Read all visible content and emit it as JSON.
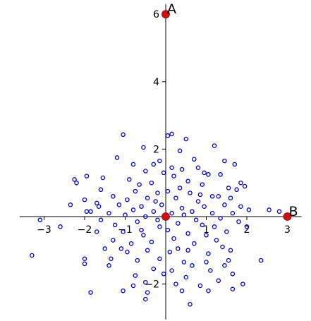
{
  "chart_data": {
    "type": "scatter",
    "title": "",
    "xlabel": "",
    "ylabel": "",
    "xlim": [
      -3.6,
      3.35
    ],
    "ylim": [
      -3.05,
      6.3
    ],
    "grid": false,
    "legend": "none",
    "x_ticks": [
      -3,
      -2,
      -1,
      0,
      1,
      2,
      3
    ],
    "y_ticks": [
      -2,
      0,
      2,
      4,
      6
    ],
    "x_tick_labels": [
      "−3",
      "−2",
      "−1",
      "",
      "1",
      "2",
      "3"
    ],
    "y_tick_labels": [
      "−2",
      "",
      "2",
      "4",
      "6"
    ],
    "point_color": "#0000cc",
    "highlight_color": "#cc1111",
    "highlight_points": [
      {
        "label": "A",
        "x": 0,
        "y": 6
      },
      {
        "label": "",
        "x": 0,
        "y": 0
      },
      {
        "label": "B",
        "x": 3,
        "y": 0
      }
    ],
    "points": [
      [
        -1.05,
        2.43
      ],
      [
        0.05,
        2.4
      ],
      [
        0.15,
        2.45
      ],
      [
        0.5,
        2.3
      ],
      [
        -0.55,
        2.05
      ],
      [
        1.2,
        2.1
      ],
      [
        0.35,
        1.95
      ],
      [
        -1.2,
        1.75
      ],
      [
        -0.3,
        1.55
      ],
      [
        -0.15,
        1.65
      ],
      [
        0.7,
        1.7
      ],
      [
        1.45,
        1.65
      ],
      [
        -0.8,
        1.55
      ],
      [
        0.15,
        1.45
      ],
      [
        0.4,
        1.4
      ],
      [
        -0.5,
        1.35
      ],
      [
        0.8,
        1.45
      ],
      [
        0.95,
        1.3
      ],
      [
        1.7,
        1.55
      ],
      [
        -0.05,
        1.3
      ],
      [
        -2.25,
        1.1
      ],
      [
        -1.95,
        1.2
      ],
      [
        -2.2,
        1.0
      ],
      [
        -1.55,
        1.15
      ],
      [
        -0.9,
        1.1
      ],
      [
        -0.35,
        1.0
      ],
      [
        0.2,
        1.2
      ],
      [
        1.05,
        1.25
      ],
      [
        1.35,
        1.25
      ],
      [
        1.85,
        1.0
      ],
      [
        -0.65,
        0.95
      ],
      [
        0.55,
        1.05
      ],
      [
        -1.6,
        0.8
      ],
      [
        -0.2,
        0.7
      ],
      [
        0.35,
        0.85
      ],
      [
        0.9,
        0.95
      ],
      [
        1.55,
        0.85
      ],
      [
        1.95,
        0.9
      ],
      [
        -1.3,
        0.6
      ],
      [
        -0.75,
        0.75
      ],
      [
        0.05,
        0.75
      ],
      [
        0.6,
        0.7
      ],
      [
        1.15,
        0.6
      ],
      [
        1.75,
        0.8
      ],
      [
        -2.0,
        0.5
      ],
      [
        -1.7,
        0.4
      ],
      [
        -0.95,
        0.5
      ],
      [
        -0.45,
        0.55
      ],
      [
        0.25,
        0.55
      ],
      [
        0.8,
        0.45
      ],
      [
        1.3,
        0.6
      ],
      [
        1.6,
        0.55
      ],
      [
        -2.35,
        0.35
      ],
      [
        -1.65,
        0.3
      ],
      [
        -1.15,
        0.35
      ],
      [
        -0.6,
        0.3
      ],
      [
        -0.1,
        0.35
      ],
      [
        0.4,
        0.25
      ],
      [
        0.95,
        0.3
      ],
      [
        1.45,
        0.35
      ],
      [
        1.85,
        0.3
      ],
      [
        -1.85,
        0.15
      ],
      [
        -1.4,
        0.1
      ],
      [
        -0.8,
        0.2
      ],
      [
        -0.3,
        0.15
      ],
      [
        0.15,
        0.1
      ],
      [
        0.65,
        0.15
      ],
      [
        1.15,
        0.1
      ],
      [
        1.65,
        0.1
      ],
      [
        2.05,
        0.2
      ],
      [
        -1.95,
        0.15
      ],
      [
        -1.0,
        0.05
      ],
      [
        -0.5,
        0.0
      ],
      [
        0.45,
        0.05
      ],
      [
        1.35,
        -0.05
      ],
      [
        2.55,
        0.2
      ],
      [
        2.8,
        0.15
      ],
      [
        -3.1,
        -0.1
      ],
      [
        -2.6,
        -0.3
      ],
      [
        -1.6,
        -0.1
      ],
      [
        -1.25,
        -0.25
      ],
      [
        -0.7,
        -0.15
      ],
      [
        -0.2,
        -0.1
      ],
      [
        0.3,
        -0.2
      ],
      [
        0.75,
        -0.1
      ],
      [
        1.2,
        -0.3
      ],
      [
        1.8,
        -0.15
      ],
      [
        -1.7,
        -0.45
      ],
      [
        -1.05,
        -0.45
      ],
      [
        -0.55,
        -0.55
      ],
      [
        0.05,
        -0.4
      ],
      [
        0.55,
        -0.5
      ],
      [
        1.0,
        -0.55
      ],
      [
        1.5,
        -0.45
      ],
      [
        2.0,
        -0.3
      ],
      [
        -1.3,
        -0.7
      ],
      [
        -0.85,
        -0.8
      ],
      [
        -0.35,
        -0.75
      ],
      [
        0.2,
        -0.65
      ],
      [
        0.7,
        -0.8
      ],
      [
        1.25,
        -0.7
      ],
      [
        -1.5,
        -0.95
      ],
      [
        -0.95,
        -1.05
      ],
      [
        -0.45,
        -1.0
      ],
      [
        0.1,
        -1.05
      ],
      [
        0.55,
        -1.0
      ],
      [
        1.05,
        -1.1
      ],
      [
        1.6,
        -1.0
      ],
      [
        -2.0,
        -1.25
      ],
      [
        -1.35,
        -1.25
      ],
      [
        -0.7,
        -1.3
      ],
      [
        -0.15,
        -1.25
      ],
      [
        0.45,
        -1.35
      ],
      [
        1.0,
        -1.35
      ],
      [
        1.55,
        -1.3
      ],
      [
        -3.3,
        -1.15
      ],
      [
        -2.0,
        -1.4
      ],
      [
        -1.4,
        -1.45
      ],
      [
        -0.3,
        -1.55
      ],
      [
        0.15,
        -1.6
      ],
      [
        0.65,
        -1.45
      ],
      [
        1.45,
        -1.45
      ],
      [
        2.35,
        -1.3
      ],
      [
        -0.75,
        -1.75
      ],
      [
        -0.05,
        -1.7
      ],
      [
        0.5,
        -1.8
      ],
      [
        1.1,
        -1.6
      ],
      [
        1.65,
        -1.7
      ],
      [
        -0.5,
        -1.95
      ],
      [
        0.25,
        -2.0
      ],
      [
        0.85,
        -2.05
      ],
      [
        1.3,
        -1.9
      ],
      [
        -0.8,
        -2.05
      ],
      [
        -1.85,
        -2.25
      ],
      [
        -1.05,
        -2.2
      ],
      [
        -0.45,
        -2.25
      ],
      [
        0.4,
        -2.2
      ],
      [
        1.05,
        -2.2
      ],
      [
        1.65,
        -2.15
      ],
      [
        1.9,
        -2.0
      ],
      [
        -0.5,
        -2.45
      ],
      [
        0.6,
        -2.6
      ],
      [
        -0.15,
        -0.3
      ],
      [
        0.9,
        -0.25
      ],
      [
        -0.25,
        0.45
      ],
      [
        0.3,
        -0.95
      ],
      [
        -1.1,
        -0.95
      ],
      [
        1.4,
        -0.9
      ],
      [
        -0.6,
        -0.4
      ],
      [
        0.85,
        0.65
      ]
    ]
  }
}
